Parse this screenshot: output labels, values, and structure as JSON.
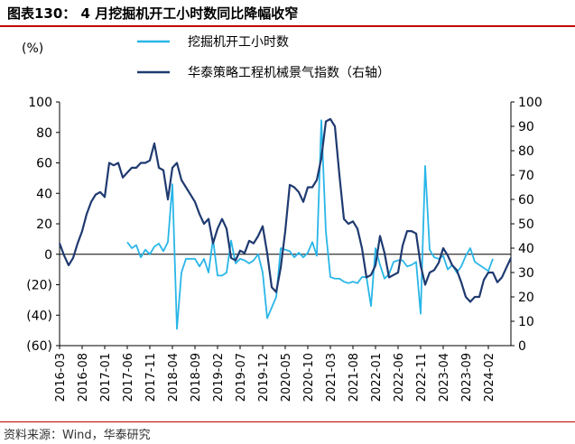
{
  "title": "图表130：  4 月挖掘机开工小时数同比降幅收窄",
  "source": "资料来源：Wind，华泰研究",
  "chart_data": {
    "type": "line",
    "ylabel_left": "(%)",
    "ylim_left": [
      -60,
      100
    ],
    "yticks_left": [
      "100",
      "80",
      "60",
      "40",
      "20",
      "0",
      "(20)",
      "(40)",
      "(60)"
    ],
    "ylim_right": [
      0,
      100
    ],
    "yticks_right": [
      "100",
      "90",
      "80",
      "70",
      "60",
      "50",
      "40",
      "30",
      "20",
      "10",
      "0"
    ],
    "xticks": [
      "2016-03",
      "2016-08",
      "2017-01",
      "2017-06",
      "2017-11",
      "2018-04",
      "2018-09",
      "2019-02",
      "2019-07",
      "2019-12",
      "2020-05",
      "2020-10",
      "2021-03",
      "2021-08",
      "2022-01",
      "2022-06",
      "2022-11",
      "2023-04",
      "2023-09",
      "2024-02"
    ],
    "start_month": "2016-03",
    "legend_position": "top-right",
    "series": [
      {
        "name": "挖掘机开工小时数",
        "axis": "left",
        "color": "#29b6e8",
        "start_index": 15,
        "values": [
          8,
          4,
          6,
          -2,
          3,
          0,
          5,
          7,
          2,
          8,
          46,
          -49,
          -12,
          -3,
          -3,
          -3,
          -8,
          -3,
          -12,
          10,
          -14,
          -14,
          -12,
          9,
          -6,
          -3,
          -4,
          -6,
          -4,
          0,
          -12,
          -42,
          -35,
          -28,
          4,
          3,
          2,
          -2,
          1,
          -2,
          1,
          8,
          -1,
          88,
          15,
          -15,
          -16,
          -16,
          -18,
          -19,
          -18,
          -19,
          -15,
          -15,
          -34,
          4,
          -7,
          -16,
          -13,
          -5,
          -4,
          -4,
          -8,
          -7,
          -5,
          -39,
          58,
          3,
          -2,
          -3,
          -1,
          -10,
          -7,
          -12,
          -8,
          -1,
          4,
          -5,
          -7,
          -9,
          -11,
          -3
        ]
      },
      {
        "name": "华泰策略工程机械景气指数（右轴）",
        "axis": "right",
        "color": "#1f3a70",
        "start_index": 0,
        "values": [
          42,
          37,
          33,
          36,
          42,
          47,
          54,
          59,
          62,
          63,
          61,
          75,
          74,
          75,
          69,
          71,
          73,
          73,
          75,
          75,
          76,
          83,
          73,
          72,
          60,
          73,
          75,
          68,
          65,
          62,
          59,
          54,
          50,
          52,
          42,
          48,
          52,
          48,
          36,
          35,
          39,
          38,
          43,
          42,
          45,
          49,
          38,
          24,
          22,
          32,
          47,
          66,
          65,
          63,
          59,
          65,
          65,
          68,
          77,
          92,
          93,
          90,
          70,
          52,
          50,
          51,
          48,
          40,
          28,
          29,
          33,
          45,
          38,
          28,
          29,
          30,
          41,
          47,
          47,
          46,
          33,
          25,
          30,
          31,
          34,
          40,
          37,
          33,
          31,
          26,
          20,
          18,
          20,
          20,
          27,
          30,
          30,
          26,
          28,
          32,
          36
        ]
      }
    ]
  }
}
